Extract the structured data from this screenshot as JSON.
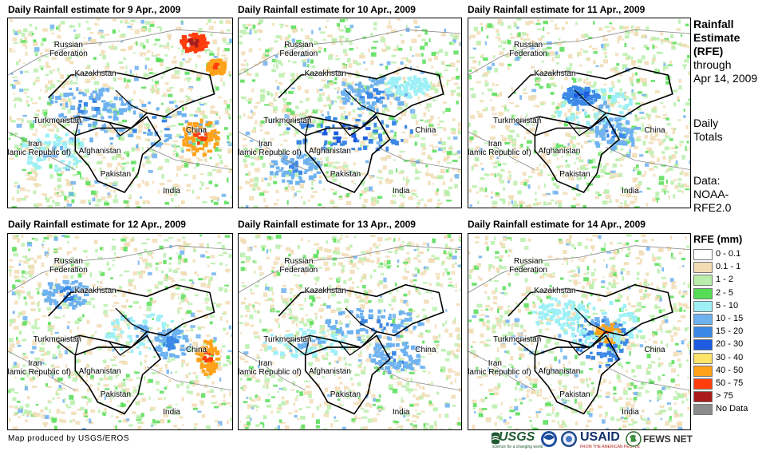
{
  "panels": [
    {
      "title": "Daily Rainfall estimate for 9 Apr., 2009"
    },
    {
      "title": "Daily Rainfall estimate for 10 Apr., 2009"
    },
    {
      "title": "Daily Rainfall estimate for 11 Apr., 2009"
    },
    {
      "title": "Daily Rainfall estimate for 12 Apr., 2009"
    },
    {
      "title": "Daily Rainfall estimate for 13 Apr., 2009"
    },
    {
      "title": "Daily Rainfall estimate for 14 Apr., 2009"
    }
  ],
  "map_labels": {
    "russia": "Russian\nFederation",
    "kazakhstan": "Kazakhstan",
    "turkmenistan": "Turkmenistan",
    "iran": "Iran\n(Islamic Republic of)",
    "afghanistan": "Afghanistan",
    "pakistan": "Pakistan",
    "china": "China",
    "india": "India"
  },
  "side_text": {
    "title_l1": "Rainfall",
    "title_l2": "Estimate",
    "title_l3": "(RFE)",
    "through_l1": "through",
    "through_l2": "Apr 14, 2009",
    "totals_l1": "Daily",
    "totals_l2": "Totals",
    "data_l1": "Data:",
    "data_l2": "NOAA-",
    "data_l3": "RFE2.0"
  },
  "legend": {
    "title": "RFE (mm)",
    "items": [
      {
        "label": "0 - 0.1",
        "color": "#ffffff"
      },
      {
        "label": "0.1 - 1",
        "color": "#f1dcb4"
      },
      {
        "label": "1 - 2",
        "color": "#b9eeaa"
      },
      {
        "label": "2 - 5",
        "color": "#55dd55"
      },
      {
        "label": "5 - 10",
        "color": "#9ef0f7"
      },
      {
        "label": "10 - 15",
        "color": "#6fb2f0"
      },
      {
        "label": "15 - 20",
        "color": "#3c88e6"
      },
      {
        "label": "20 - 30",
        "color": "#1d5ce0"
      },
      {
        "label": "30 - 40",
        "color": "#ffe46a"
      },
      {
        "label": "40 - 50",
        "color": "#ffa21a"
      },
      {
        "label": "50 - 75",
        "color": "#ff3d0d"
      },
      {
        "label": "> 75",
        "color": "#aa1c1c"
      },
      {
        "label": "No Data",
        "color": "#8c8c8c"
      }
    ]
  },
  "credit": "Map produced by USGS/EROS",
  "logos": {
    "usgs": "USGS",
    "usgs_tagline": "science for a changing world",
    "usaid": "USAID",
    "usaid_tagline": "FROM THE AMERICAN PEOPLE",
    "fews": "FEWS NET"
  }
}
